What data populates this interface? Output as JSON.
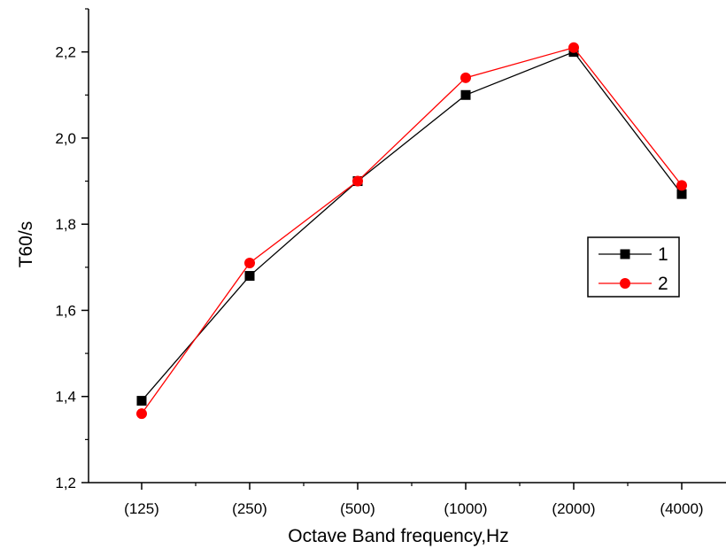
{
  "chart_data": {
    "type": "line",
    "categories": [
      "(125)",
      "(250)",
      "(500)",
      "(1000)",
      "(2000)",
      "(4000)"
    ],
    "series": [
      {
        "name": "1",
        "values": [
          1.39,
          1.68,
          1.9,
          2.1,
          2.2,
          1.87
        ],
        "color": "#000000",
        "marker": "square"
      },
      {
        "name": "2",
        "values": [
          1.36,
          1.71,
          1.9,
          2.14,
          2.21,
          1.89
        ],
        "color": "#ff0000",
        "marker": "circle"
      }
    ],
    "xlabel": "Octave Band frequency,Hz",
    "ylabel": "T60/s",
    "ylim": [
      1.2,
      2.3
    ],
    "yticks": [
      "1,2",
      "1,4",
      "1,6",
      "1,8",
      "2,0",
      "2,2"
    ],
    "ytick_values": [
      1.2,
      1.4,
      1.6,
      1.8,
      2.0,
      2.2
    ],
    "grid": false,
    "legend_position": "right"
  }
}
